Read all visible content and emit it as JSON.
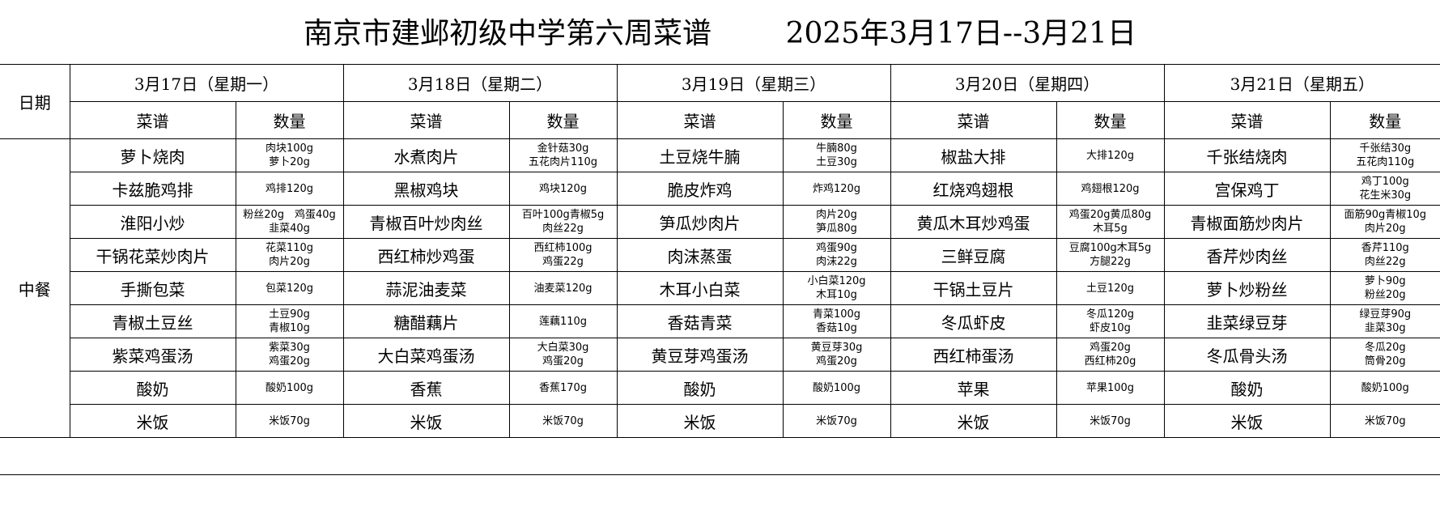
{
  "title": "南京市建邺初级中学第六周菜谱        2025年3月17日--3月21日",
  "header": {
    "date_label": "日期",
    "meal_label": "中餐",
    "dish_col": "菜谱",
    "qty_col": "数量",
    "days": [
      "3月17日（星期一）",
      "3月18日（星期二）",
      "3月19日（星期三）",
      "3月20日（星期四）",
      "3月21日（星期五）"
    ]
  },
  "menu": [
    [
      {
        "dish": "萝卜烧肉",
        "qty": [
          "肉块100g",
          "萝卜20g"
        ]
      },
      {
        "dish": "卡兹脆鸡排",
        "qty": [
          "鸡排120g"
        ]
      },
      {
        "dish": "淮阳小炒",
        "qty": [
          "粉丝20g　鸡蛋40g",
          "韭菜40g"
        ]
      },
      {
        "dish": "干锅花菜炒肉片",
        "qty": [
          "花菜110g",
          "肉片20g"
        ]
      },
      {
        "dish": "手撕包菜",
        "qty": [
          "包菜120g"
        ]
      },
      {
        "dish": "青椒土豆丝",
        "qty": [
          "土豆90g",
          "青椒10g"
        ]
      },
      {
        "dish": "紫菜鸡蛋汤",
        "qty": [
          "紫菜30g",
          "鸡蛋20g"
        ]
      },
      {
        "dish": "酸奶",
        "qty": [
          "酸奶100g"
        ]
      },
      {
        "dish": "米饭",
        "qty": [
          "米饭70g"
        ]
      }
    ],
    [
      {
        "dish": "水煮肉片",
        "qty": [
          "金针菇30g",
          "五花肉片110g"
        ]
      },
      {
        "dish": "黑椒鸡块",
        "qty": [
          "鸡块120g"
        ]
      },
      {
        "dish": "青椒百叶炒肉丝",
        "qty": [
          "百叶100g青椒5g",
          "肉丝22g"
        ]
      },
      {
        "dish": "西红柿炒鸡蛋",
        "qty": [
          "西红柿100g",
          "鸡蛋22g"
        ]
      },
      {
        "dish": "蒜泥油麦菜",
        "qty": [
          "油麦菜120g"
        ]
      },
      {
        "dish": "糖醋藕片",
        "qty": [
          "莲藕110g"
        ]
      },
      {
        "dish": "大白菜鸡蛋汤",
        "qty": [
          "大白菜30g",
          "鸡蛋20g"
        ]
      },
      {
        "dish": "香蕉",
        "qty": [
          "香蕉170g"
        ]
      },
      {
        "dish": "米饭",
        "qty": [
          "米饭70g"
        ]
      }
    ],
    [
      {
        "dish": "土豆烧牛腩",
        "qty": [
          "牛腩80g",
          "土豆30g"
        ]
      },
      {
        "dish": "脆皮炸鸡",
        "qty": [
          "炸鸡120g"
        ]
      },
      {
        "dish": "笋瓜炒肉片",
        "qty": [
          "肉片20g",
          "笋瓜80g"
        ]
      },
      {
        "dish": "肉沫蒸蛋",
        "qty": [
          "鸡蛋90g",
          "肉沫22g"
        ]
      },
      {
        "dish": "木耳小白菜",
        "qty": [
          "小白菜120g",
          "木耳10g"
        ]
      },
      {
        "dish": "香菇青菜",
        "qty": [
          "青菜100g",
          "香菇10g"
        ]
      },
      {
        "dish": "黄豆芽鸡蛋汤",
        "qty": [
          "黄豆芽30g",
          "鸡蛋20g"
        ]
      },
      {
        "dish": "酸奶",
        "qty": [
          "酸奶100g"
        ]
      },
      {
        "dish": "米饭",
        "qty": [
          "米饭70g"
        ]
      }
    ],
    [
      {
        "dish": "椒盐大排",
        "qty": [
          "大排120g"
        ]
      },
      {
        "dish": "红烧鸡翅根",
        "qty": [
          "鸡翅根120g"
        ]
      },
      {
        "dish": "黄瓜木耳炒鸡蛋",
        "qty": [
          "鸡蛋20g黄瓜80g",
          "木耳5g"
        ]
      },
      {
        "dish": "三鲜豆腐",
        "qty": [
          "豆腐100g木耳5g",
          "方腿22g"
        ]
      },
      {
        "dish": "干锅土豆片",
        "qty": [
          "土豆120g"
        ]
      },
      {
        "dish": "冬瓜虾皮",
        "qty": [
          "冬瓜120g",
          "虾皮10g"
        ]
      },
      {
        "dish": "西红柿蛋汤",
        "qty": [
          "鸡蛋20g",
          "西红柿20g"
        ]
      },
      {
        "dish": "苹果",
        "qty": [
          "苹果100g"
        ]
      },
      {
        "dish": "米饭",
        "qty": [
          "米饭70g"
        ]
      }
    ],
    [
      {
        "dish": "千张结烧肉",
        "qty": [
          "千张结30g",
          "五花肉110g"
        ]
      },
      {
        "dish": "宫保鸡丁",
        "qty": [
          "鸡丁100g",
          "花生米30g"
        ]
      },
      {
        "dish": "青椒面筋炒肉片",
        "qty": [
          "面筋90g青椒10g",
          "肉片20g"
        ]
      },
      {
        "dish": "香芹炒肉丝",
        "qty": [
          "香芹110g",
          "肉丝22g"
        ]
      },
      {
        "dish": "萝卜炒粉丝",
        "qty": [
          "萝卜90g",
          "粉丝20g"
        ]
      },
      {
        "dish": "韭菜绿豆芽",
        "qty": [
          "绿豆芽90g",
          "韭菜30g"
        ]
      },
      {
        "dish": "冬瓜骨头汤",
        "qty": [
          "冬瓜20g",
          "筒骨20g"
        ]
      },
      {
        "dish": "酸奶",
        "qty": [
          "酸奶100g"
        ]
      },
      {
        "dish": "米饭",
        "qty": [
          "米饭70g"
        ]
      }
    ]
  ]
}
